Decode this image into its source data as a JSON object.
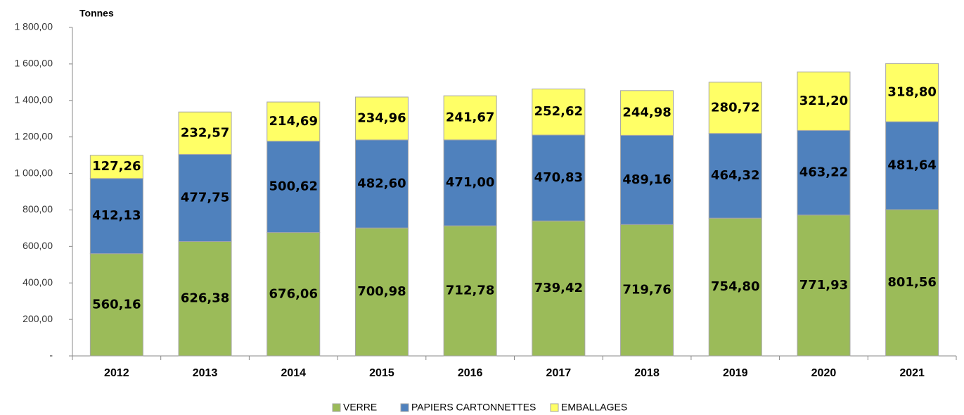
{
  "chart_data": {
    "type": "stacked_bar",
    "y_axis_label": "Tonnes",
    "categories": [
      "2012",
      "2013",
      "2014",
      "2015",
      "2016",
      "2017",
      "2018",
      "2019",
      "2020",
      "2021"
    ],
    "series": [
      {
        "name": "VERRE",
        "color": "#9bbb59",
        "values": [
          560.16,
          626.38,
          676.06,
          700.98,
          712.78,
          739.42,
          719.76,
          754.8,
          771.93,
          801.56
        ],
        "value_labels": [
          "560,16",
          "626,38",
          "676,06",
          "700,98",
          "712,78",
          "739,42",
          "719,76",
          "754,80",
          "771,93",
          "801,56"
        ]
      },
      {
        "name": "PAPIERS CARTONNETTES",
        "color": "#4f81bd",
        "values": [
          412.13,
          477.75,
          500.62,
          482.6,
          471.0,
          470.83,
          489.16,
          464.32,
          463.22,
          481.64
        ],
        "value_labels": [
          "412,13",
          "477,75",
          "500,62",
          "482,60",
          "471,00",
          "470,83",
          "489,16",
          "464,32",
          "463,22",
          "481,64"
        ]
      },
      {
        "name": "EMBALLAGES",
        "color": "#ffff66",
        "values": [
          127.26,
          232.57,
          214.69,
          234.96,
          241.67,
          252.62,
          244.98,
          280.72,
          321.2,
          318.8
        ],
        "value_labels": [
          "127,26",
          "232,57",
          "214,69",
          "234,96",
          "241,67",
          "252,62",
          "244,98",
          "280,72",
          "321,20",
          "318,80"
        ]
      }
    ],
    "ylim": [
      0,
      1800
    ],
    "yticks": [
      {
        "value": 0,
        "label": "-"
      },
      {
        "value": 200,
        "label": "200,00"
      },
      {
        "value": 400,
        "label": "400,00"
      },
      {
        "value": 600,
        "label": "600,00"
      },
      {
        "value": 800,
        "label": "800,00"
      },
      {
        "value": 1000,
        "label": "1 000,00"
      },
      {
        "value": 1200,
        "label": "1 200,00"
      },
      {
        "value": 1400,
        "label": "1 400,00"
      },
      {
        "value": 1600,
        "label": "1 600,00"
      },
      {
        "value": 1800,
        "label": "1 800,00"
      }
    ],
    "legend": "bottom"
  }
}
